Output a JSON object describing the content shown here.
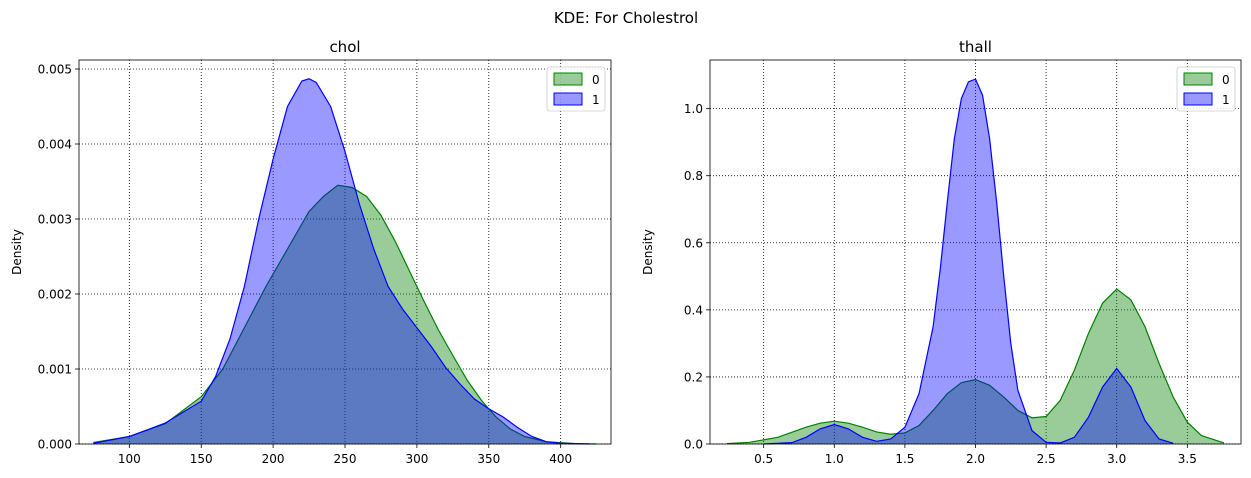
{
  "figure": {
    "suptitle": "KDE: For Cholestrol"
  },
  "chart_data": [
    {
      "type": "area",
      "title": "chol",
      "xlabel": "",
      "ylabel": "Density",
      "xlim": [
        65,
        435
      ],
      "ylim": [
        0,
        0.00512
      ],
      "xticks": [
        100,
        150,
        200,
        250,
        300,
        350,
        400
      ],
      "xtick_labels": [
        "100",
        "150",
        "200",
        "250",
        "300",
        "350",
        "400"
      ],
      "yticks": [
        0,
        0.001,
        0.002,
        0.003,
        0.004,
        0.005
      ],
      "ytick_labels": [
        "0.000",
        "0.001",
        "0.002",
        "0.003",
        "0.004",
        "0.005"
      ],
      "grid": true,
      "legend": "top-right",
      "series": [
        {
          "name": "0",
          "color": "#008000",
          "x": [
            75,
            100,
            125,
            150,
            165,
            180,
            195,
            210,
            225,
            235,
            245,
            255,
            265,
            275,
            285,
            295,
            305,
            315,
            325,
            335,
            345,
            355,
            365,
            375,
            390,
            410,
            425
          ],
          "y": [
            2e-05,
            0.0001,
            0.00027,
            0.00063,
            0.001,
            0.00155,
            0.0021,
            0.0026,
            0.0031,
            0.0033,
            0.00345,
            0.00342,
            0.0033,
            0.00305,
            0.0027,
            0.0023,
            0.0019,
            0.00152,
            0.00118,
            0.00085,
            0.00058,
            0.00036,
            0.0002,
            0.0001,
            3e-05,
            5e-06,
            0
          ]
        },
        {
          "name": "1",
          "color": "#0000ff",
          "x": [
            75,
            100,
            125,
            150,
            160,
            170,
            180,
            190,
            200,
            210,
            220,
            225,
            230,
            240,
            250,
            260,
            270,
            280,
            290,
            300,
            310,
            320,
            330,
            340,
            350,
            360,
            370,
            380,
            390,
            400,
            420
          ],
          "y": [
            1e-05,
            0.0001,
            0.00028,
            0.00057,
            0.0009,
            0.0014,
            0.0021,
            0.003,
            0.0038,
            0.0045,
            0.00484,
            0.00487,
            0.00482,
            0.0045,
            0.0039,
            0.0032,
            0.0026,
            0.0021,
            0.0018,
            0.00155,
            0.0013,
            0.00102,
            0.0008,
            0.0006,
            0.00047,
            0.00036,
            0.00022,
            0.0001,
            3e-05,
            1e-05,
            0
          ]
        }
      ]
    },
    {
      "type": "area",
      "title": "thall",
      "xlabel": "",
      "ylabel": "Density",
      "xlim": [
        0.12,
        3.88
      ],
      "ylim": [
        0,
        1.145
      ],
      "xticks": [
        0.5,
        1.0,
        1.5,
        2.0,
        2.5,
        3.0,
        3.5
      ],
      "xtick_labels": [
        "0.5",
        "1.0",
        "1.5",
        "2.0",
        "2.5",
        "3.0",
        "3.5"
      ],
      "yticks": [
        0,
        0.2,
        0.4,
        0.6,
        0.8,
        1.0
      ],
      "ytick_labels": [
        "0.0",
        "0.2",
        "0.4",
        "0.6",
        "0.8",
        "1.0"
      ],
      "grid": true,
      "legend": "top-right",
      "series": [
        {
          "name": "0",
          "color": "#008000",
          "x": [
            0.24,
            0.4,
            0.6,
            0.8,
            0.9,
            1.0,
            1.1,
            1.2,
            1.3,
            1.4,
            1.5,
            1.6,
            1.7,
            1.8,
            1.9,
            2.0,
            2.1,
            2.2,
            2.3,
            2.4,
            2.5,
            2.6,
            2.7,
            2.8,
            2.9,
            3.0,
            3.1,
            3.2,
            3.3,
            3.4,
            3.5,
            3.6,
            3.76
          ],
          "y": [
            0.001,
            0.005,
            0.02,
            0.05,
            0.062,
            0.068,
            0.062,
            0.05,
            0.036,
            0.029,
            0.033,
            0.055,
            0.1,
            0.15,
            0.183,
            0.192,
            0.175,
            0.14,
            0.1,
            0.078,
            0.082,
            0.13,
            0.22,
            0.33,
            0.42,
            0.462,
            0.43,
            0.35,
            0.24,
            0.14,
            0.065,
            0.025,
            0.003
          ]
        },
        {
          "name": "1",
          "color": "#0000ff",
          "x": [
            0.5,
            0.7,
            0.8,
            0.9,
            1.0,
            1.1,
            1.2,
            1.3,
            1.4,
            1.5,
            1.6,
            1.7,
            1.75,
            1.8,
            1.85,
            1.9,
            1.95,
            2.0,
            2.05,
            2.1,
            2.15,
            2.2,
            2.25,
            2.3,
            2.4,
            2.5,
            2.6,
            2.7,
            2.8,
            2.9,
            3.0,
            3.1,
            3.2,
            3.3,
            3.4
          ],
          "y": [
            0,
            0.004,
            0.02,
            0.045,
            0.058,
            0.045,
            0.02,
            0.008,
            0.015,
            0.05,
            0.15,
            0.35,
            0.52,
            0.72,
            0.91,
            1.03,
            1.08,
            1.088,
            1.04,
            0.91,
            0.72,
            0.5,
            0.3,
            0.16,
            0.04,
            0.005,
            0.003,
            0.02,
            0.08,
            0.17,
            0.225,
            0.17,
            0.07,
            0.015,
            0.002
          ]
        }
      ]
    }
  ]
}
